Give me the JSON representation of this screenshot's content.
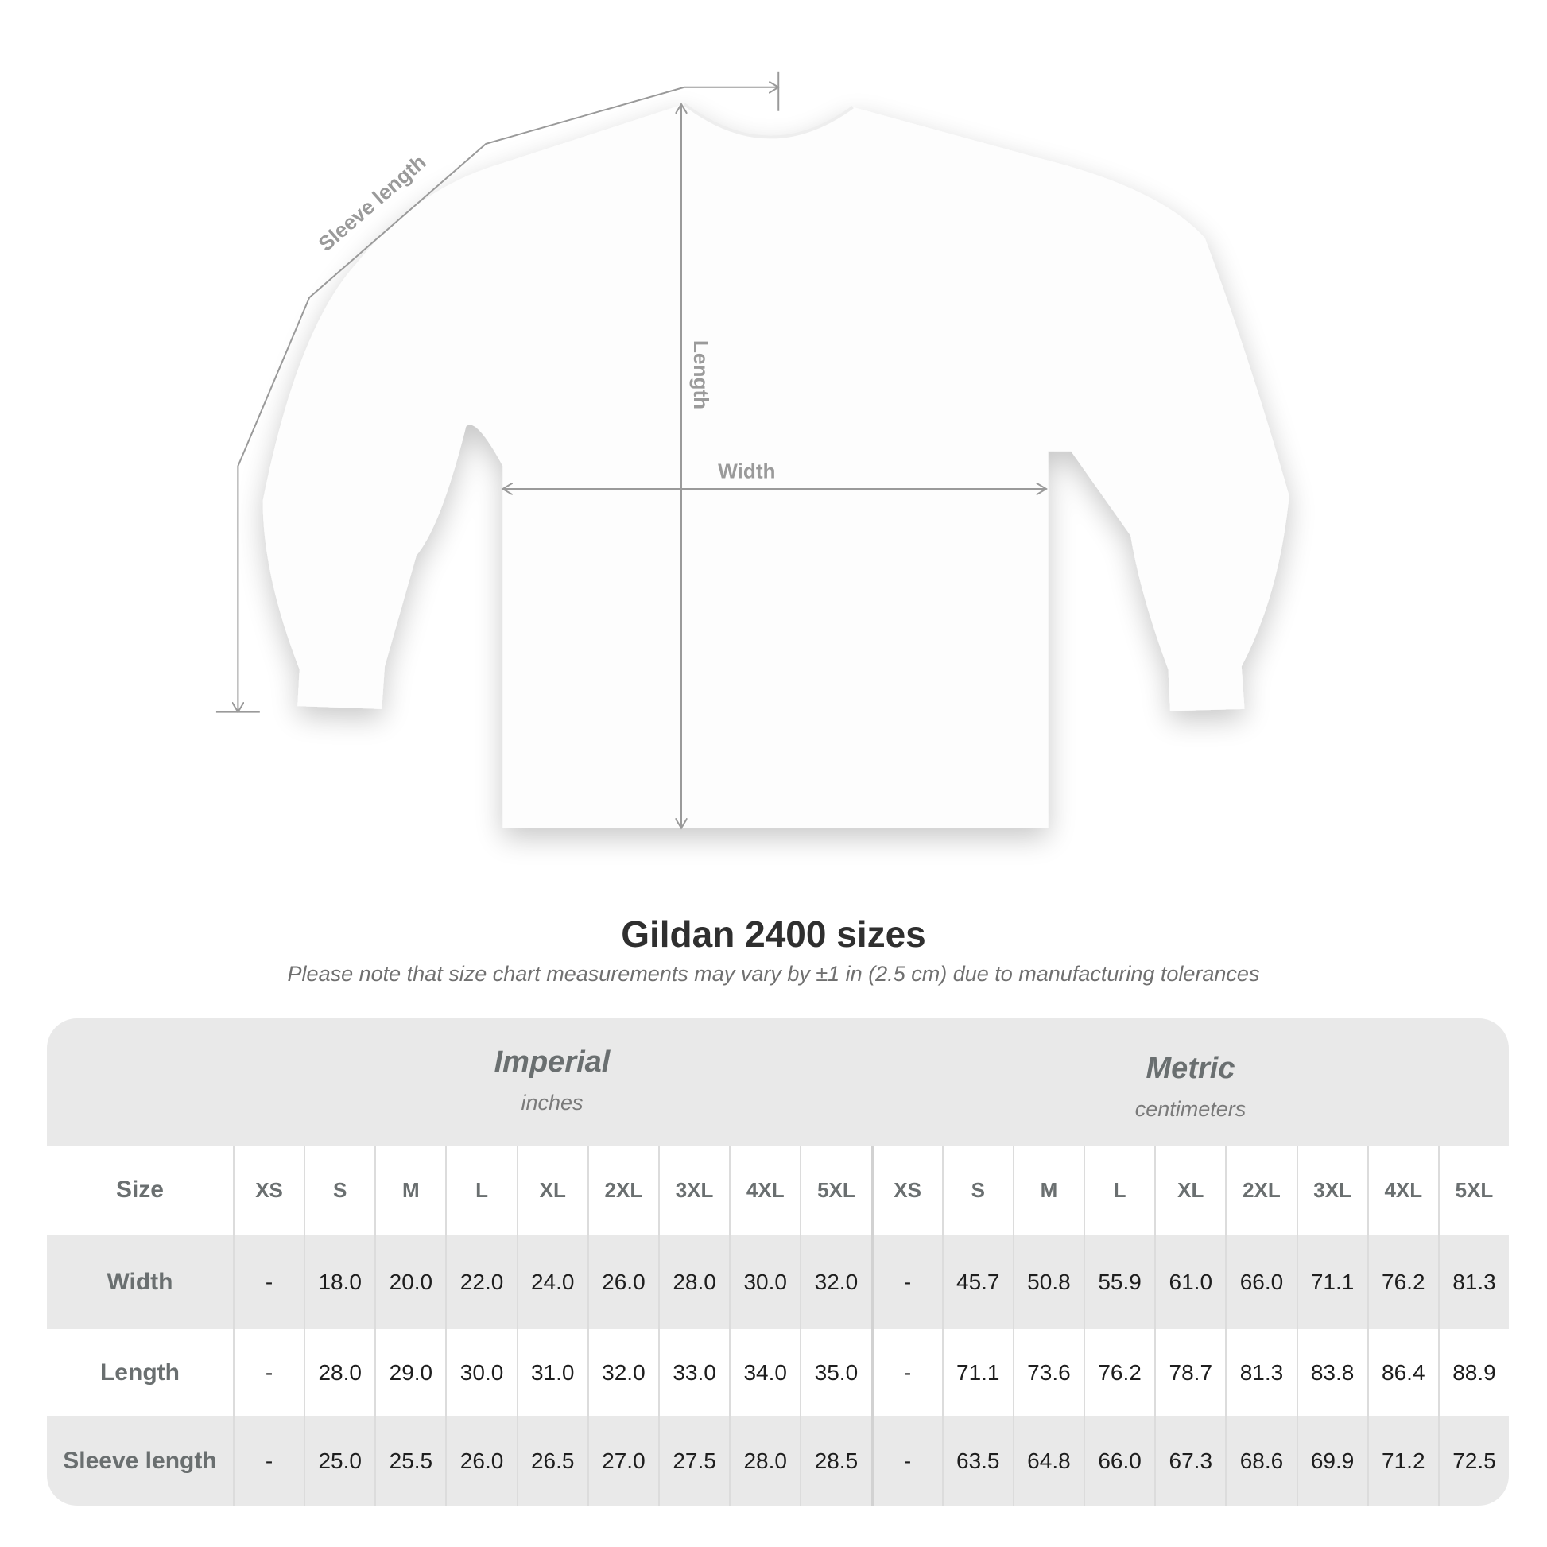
{
  "diagram": {
    "sleeve_label": "Sleeve length",
    "length_label": "Length",
    "width_label": "Width"
  },
  "title": "Gildan 2400 sizes",
  "subtitle": "Please note that size chart measurements may vary by ±1 in (2.5 cm) due to manufacturing tolerances",
  "imperial": {
    "name": "Imperial",
    "unit": "inches"
  },
  "metric": {
    "name": "Metric",
    "unit": "centimeters"
  },
  "table": {
    "size_label": "Size",
    "sizes": [
      "XS",
      "S",
      "M",
      "L",
      "XL",
      "2XL",
      "3XL",
      "4XL",
      "5XL",
      "XS",
      "S",
      "M",
      "L",
      "XL",
      "2XL",
      "3XL",
      "4XL",
      "5XL"
    ],
    "rows": [
      {
        "label": "Width",
        "values": [
          "-",
          "18.0",
          "20.0",
          "22.0",
          "24.0",
          "26.0",
          "28.0",
          "30.0",
          "32.0",
          "-",
          "45.7",
          "50.8",
          "55.9",
          "61.0",
          "66.0",
          "71.1",
          "76.2",
          "81.3"
        ]
      },
      {
        "label": "Length",
        "values": [
          "-",
          "28.0",
          "29.0",
          "30.0",
          "31.0",
          "32.0",
          "33.0",
          "34.0",
          "35.0",
          "-",
          "71.1",
          "73.6",
          "76.2",
          "78.7",
          "81.3",
          "83.8",
          "86.4",
          "88.9"
        ]
      },
      {
        "label": "Sleeve length",
        "values": [
          "-",
          "25.0",
          "25.5",
          "26.0",
          "26.5",
          "27.0",
          "27.5",
          "28.0",
          "28.5",
          "-",
          "63.5",
          "64.8",
          "66.0",
          "67.3",
          "68.6",
          "69.9",
          "71.2",
          "72.5"
        ]
      }
    ]
  },
  "colors": {
    "header_gray": "#e9e9e9",
    "label_gray": "#6a6f70",
    "line_gray": "#9a9a9a"
  }
}
